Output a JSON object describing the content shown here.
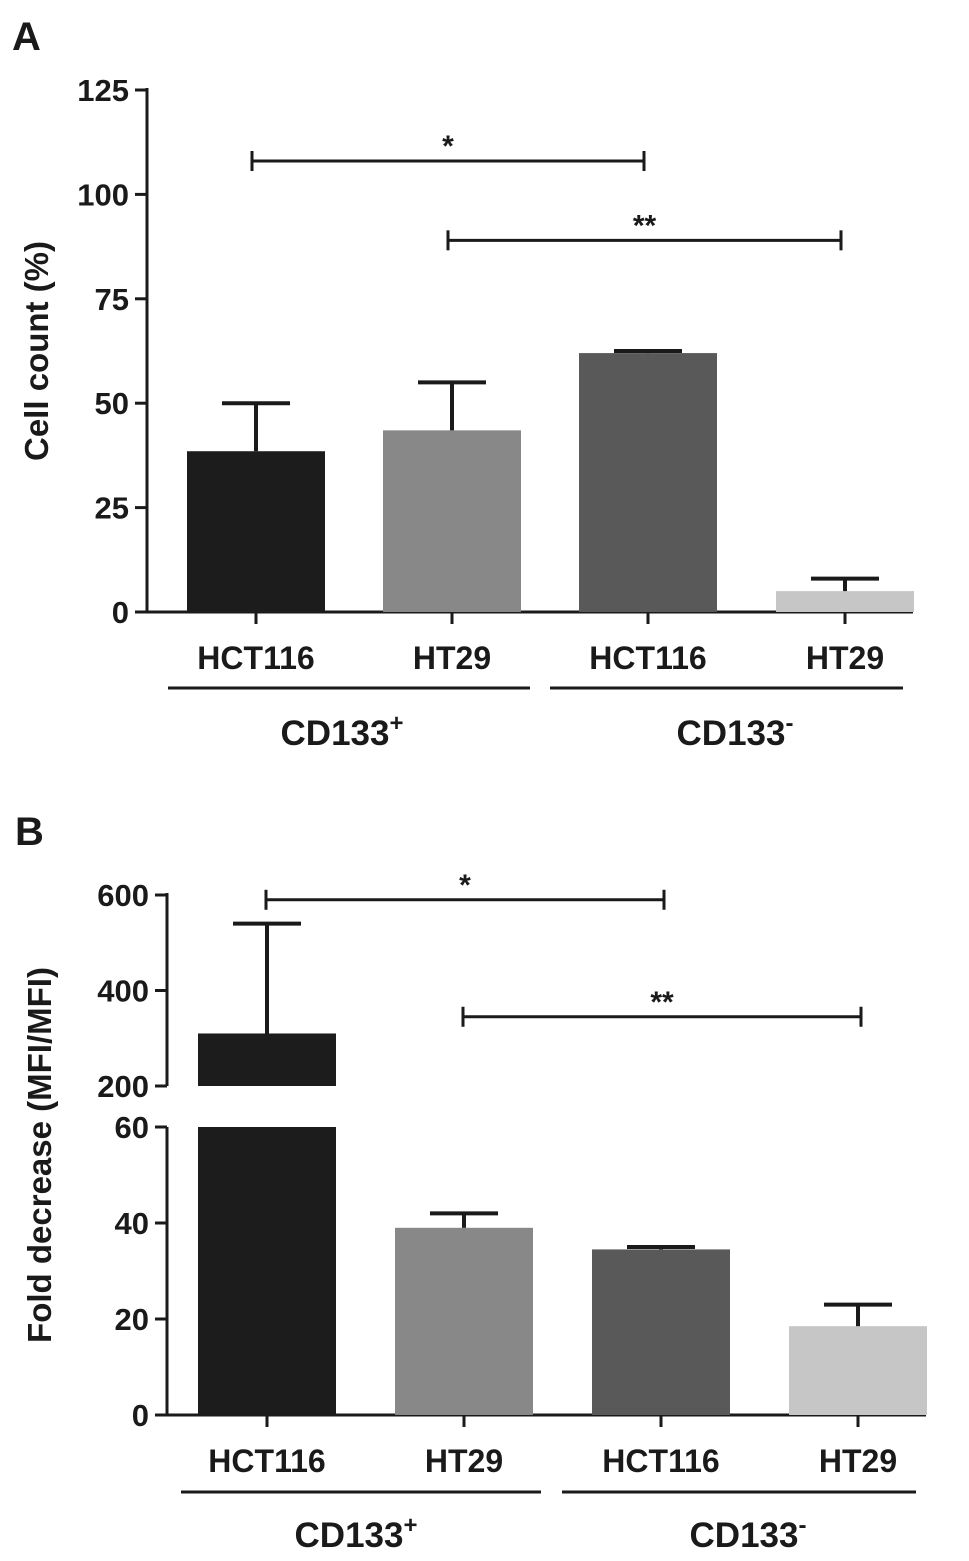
{
  "chart_data": [
    {
      "panel": "A",
      "type": "bar",
      "ylabel": "Cell count (%)",
      "ylim": [
        0,
        125
      ],
      "yticks": [
        0,
        25,
        50,
        75,
        100,
        125
      ],
      "categories": [
        "HCT116",
        "HT29",
        "HCT116",
        "HT29"
      ],
      "groups": [
        {
          "label": "CD133",
          "sup": "+"
        },
        {
          "label": "CD133",
          "sup": "-"
        }
      ],
      "values": [
        38.5,
        43.5,
        62,
        5
      ],
      "errors": [
        11.5,
        11.5,
        0.5,
        3
      ],
      "colors": [
        "#1c1c1c",
        "#888888",
        "#595959",
        "#c6c6c6"
      ],
      "significance": [
        {
          "from": 0,
          "to": 2,
          "label": "*",
          "y": 108
        },
        {
          "from": 1,
          "to": 3,
          "label": "**",
          "y": 89
        }
      ]
    },
    {
      "panel": "B",
      "type": "bar",
      "ylabel": "Fold decrease (MFI/MFI)",
      "broken_axis": true,
      "ylim_lower": [
        0,
        60
      ],
      "yticks_lower": [
        0,
        20,
        40,
        60
      ],
      "ylim_upper": [
        200,
        600
      ],
      "yticks_upper": [
        200,
        400,
        600
      ],
      "categories": [
        "HCT116",
        "HT29",
        "HCT116",
        "HT29"
      ],
      "groups": [
        {
          "label": "CD133",
          "sup": "+"
        },
        {
          "label": "CD133",
          "sup": "-"
        }
      ],
      "values": [
        310,
        39,
        34.5,
        18.5
      ],
      "errors": [
        230,
        3,
        0.5,
        4.5
      ],
      "colors": [
        "#1c1c1c",
        "#888888",
        "#595959",
        "#c6c6c6"
      ],
      "significance": [
        {
          "from": 0,
          "to": 2,
          "label": "*",
          "axis": "upper",
          "y": 590
        },
        {
          "from": 1,
          "to": 3,
          "label": "**",
          "axis": "upper",
          "y": 345
        }
      ]
    }
  ]
}
